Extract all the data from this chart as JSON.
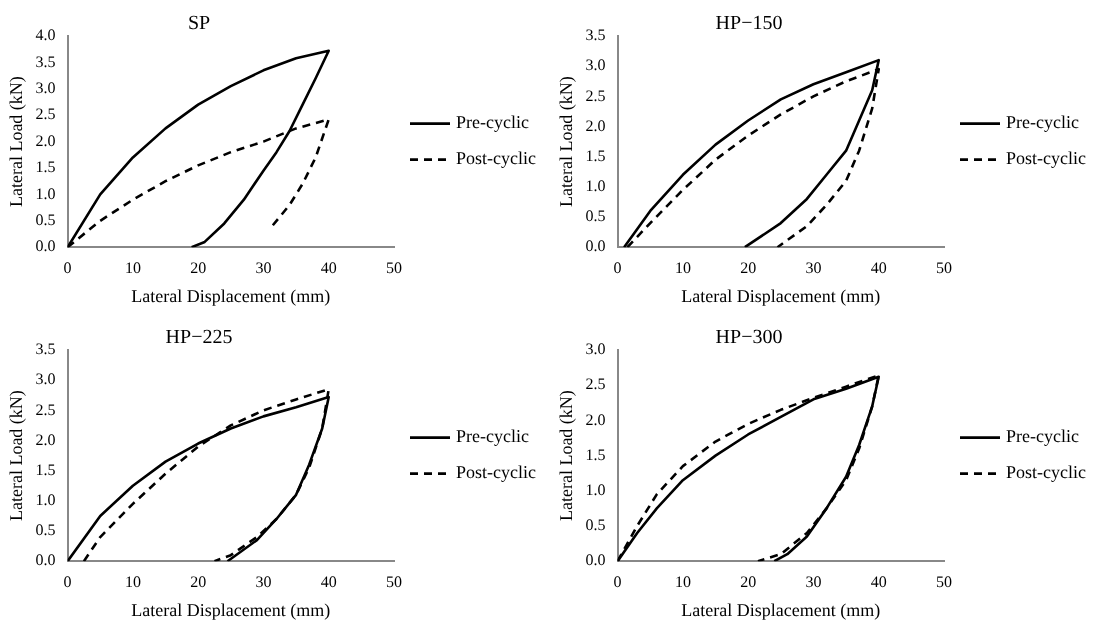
{
  "chart_data": [
    {
      "type": "line",
      "title": "SP",
      "xlabel": "Lateral Displacement (mm)",
      "ylabel": "Lateral Load (kN)",
      "xlim": [
        0,
        50
      ],
      "xticks": [
        0,
        10,
        20,
        30,
        40,
        50
      ],
      "ylim": [
        0,
        4
      ],
      "yticks": [
        {
          "value": 0,
          "label": "0.0"
        },
        {
          "value": 0.5,
          "label": "0.5"
        },
        {
          "value": 1,
          "label": "1.0"
        },
        {
          "value": 1.5,
          "label": "1.5"
        },
        {
          "value": 2,
          "label": "2.0"
        },
        {
          "value": 2.5,
          "label": "2.5"
        },
        {
          "value": 3,
          "label": "3.0"
        },
        {
          "value": 3.5,
          "label": "3.5"
        },
        {
          "value": 4,
          "label": "4.0"
        }
      ],
      "grid": false,
      "legend": "right",
      "marker": "none",
      "series": [
        {
          "name": "Pre-cyclic",
          "color": "#000000",
          "line_style": "solid",
          "x": [
            0,
            5,
            10,
            15,
            20,
            25,
            30,
            35,
            40,
            38,
            36,
            34,
            32,
            30,
            27,
            24,
            21,
            19
          ],
          "values": [
            0,
            1.0,
            1.7,
            2.25,
            2.7,
            3.05,
            3.35,
            3.58,
            3.72,
            3.2,
            2.7,
            2.2,
            1.8,
            1.45,
            0.9,
            0.45,
            0.1,
            0
          ]
        },
        {
          "name": "Post-cyclic",
          "color": "#000000",
          "line_style": "dashed",
          "x": [
            0,
            5,
            10,
            15,
            20,
            25,
            30,
            35,
            40,
            38,
            36,
            34,
            31
          ],
          "values": [
            0,
            0.5,
            0.9,
            1.25,
            1.55,
            1.8,
            2.0,
            2.25,
            2.42,
            1.7,
            1.2,
            0.8,
            0.35
          ]
        }
      ]
    },
    {
      "type": "line",
      "title": "HP−150",
      "xlabel": "Lateral Displacement (mm)",
      "ylabel": "Lateral Load (kN)",
      "xlim": [
        0,
        50
      ],
      "xticks": [
        0,
        10,
        20,
        30,
        40,
        50
      ],
      "ylim": [
        0,
        3.5
      ],
      "yticks": [
        {
          "value": 0,
          "label": "0.0"
        },
        {
          "value": 0.5,
          "label": "0.5"
        },
        {
          "value": 1,
          "label": "1.0"
        },
        {
          "value": 1.5,
          "label": "1.5"
        },
        {
          "value": 2,
          "label": "2.0"
        },
        {
          "value": 2.5,
          "label": "2.5"
        },
        {
          "value": 3,
          "label": "3.0"
        },
        {
          "value": 3.5,
          "label": "3.5"
        }
      ],
      "grid": false,
      "legend": "right",
      "marker": "none",
      "series": [
        {
          "name": "Pre-cyclic",
          "color": "#000000",
          "line_style": "solid",
          "x": [
            1,
            5,
            10,
            15,
            20,
            25,
            30,
            35,
            40,
            39,
            37,
            35,
            32,
            29,
            25,
            19.5
          ],
          "values": [
            0,
            0.6,
            1.2,
            1.7,
            2.1,
            2.45,
            2.7,
            2.9,
            3.1,
            2.6,
            2.1,
            1.6,
            1.2,
            0.8,
            0.4,
            0
          ]
        },
        {
          "name": "Post-cyclic",
          "color": "#000000",
          "line_style": "dashed",
          "x": [
            1.5,
            5,
            10,
            15,
            20,
            25,
            30,
            35,
            40,
            39,
            37,
            35,
            32,
            29,
            24.5
          ],
          "values": [
            0,
            0.4,
            0.95,
            1.45,
            1.85,
            2.2,
            2.5,
            2.75,
            2.95,
            2.3,
            1.6,
            1.1,
            0.7,
            0.35,
            0
          ]
        }
      ]
    },
    {
      "type": "line",
      "title": "HP−225",
      "xlabel": "Lateral Displacement (mm)",
      "ylabel": "Lateral Load (kN)",
      "xlim": [
        0,
        50
      ],
      "xticks": [
        0,
        10,
        20,
        30,
        40,
        50
      ],
      "ylim": [
        0,
        3.5
      ],
      "yticks": [
        {
          "value": 0,
          "label": "0.0"
        },
        {
          "value": 0.5,
          "label": "0.5"
        },
        {
          "value": 1,
          "label": "1.0"
        },
        {
          "value": 1.5,
          "label": "1.5"
        },
        {
          "value": 2,
          "label": "2.0"
        },
        {
          "value": 2.5,
          "label": "2.5"
        },
        {
          "value": 3,
          "label": "3.0"
        },
        {
          "value": 3.5,
          "label": "3.5"
        }
      ],
      "grid": false,
      "legend": "right",
      "marker": "none",
      "series": [
        {
          "name": "Pre-cyclic",
          "color": "#000000",
          "line_style": "solid",
          "x": [
            0,
            5,
            10,
            15,
            20,
            25,
            30,
            35,
            40,
            39,
            37,
            35,
            32,
            29,
            24.5
          ],
          "values": [
            0,
            0.75,
            1.25,
            1.65,
            1.95,
            2.2,
            2.4,
            2.55,
            2.72,
            2.2,
            1.6,
            1.1,
            0.7,
            0.35,
            0
          ]
        },
        {
          "name": "Post-cyclic",
          "color": "#000000",
          "line_style": "dashed",
          "x": [
            2.5,
            5,
            10,
            15,
            20,
            25,
            30,
            35,
            40,
            39,
            37,
            35,
            32,
            29,
            25,
            22.5
          ],
          "values": [
            0,
            0.4,
            0.95,
            1.45,
            1.9,
            2.25,
            2.5,
            2.68,
            2.85,
            2.2,
            1.55,
            1.1,
            0.7,
            0.4,
            0.1,
            0
          ]
        }
      ]
    },
    {
      "type": "line",
      "title": "HP−300",
      "xlabel": "Lateral Displacement (mm)",
      "ylabel": "Lateral Load (kN)",
      "xlim": [
        0,
        50
      ],
      "xticks": [
        0,
        10,
        20,
        30,
        40,
        50
      ],
      "ylim": [
        0,
        3
      ],
      "yticks": [
        {
          "value": 0,
          "label": "0.0"
        },
        {
          "value": 0.5,
          "label": "0.5"
        },
        {
          "value": 1,
          "label": "1.0"
        },
        {
          "value": 1.5,
          "label": "1.5"
        },
        {
          "value": 2,
          "label": "2.0"
        },
        {
          "value": 2.5,
          "label": "2.5"
        },
        {
          "value": 3,
          "label": "3.0"
        }
      ],
      "grid": false,
      "legend": "right",
      "marker": "none",
      "series": [
        {
          "name": "Pre-cyclic",
          "color": "#000000",
          "line_style": "solid",
          "x": [
            0,
            3,
            6,
            10,
            15,
            20,
            25,
            30,
            35,
            40,
            39,
            37,
            35,
            32,
            29,
            26,
            24
          ],
          "values": [
            0,
            0.4,
            0.75,
            1.15,
            1.5,
            1.8,
            2.05,
            2.3,
            2.45,
            2.62,
            2.2,
            1.65,
            1.2,
            0.75,
            0.35,
            0.1,
            0
          ]
        },
        {
          "name": "Post-cyclic",
          "color": "#000000",
          "line_style": "dashed",
          "x": [
            0,
            3,
            6,
            10,
            15,
            20,
            25,
            30,
            35,
            40,
            39,
            37,
            35,
            32,
            29,
            25,
            21.5
          ],
          "values": [
            0,
            0.5,
            0.95,
            1.35,
            1.7,
            1.95,
            2.15,
            2.32,
            2.48,
            2.64,
            2.2,
            1.6,
            1.15,
            0.75,
            0.4,
            0.1,
            0
          ]
        }
      ]
    }
  ]
}
